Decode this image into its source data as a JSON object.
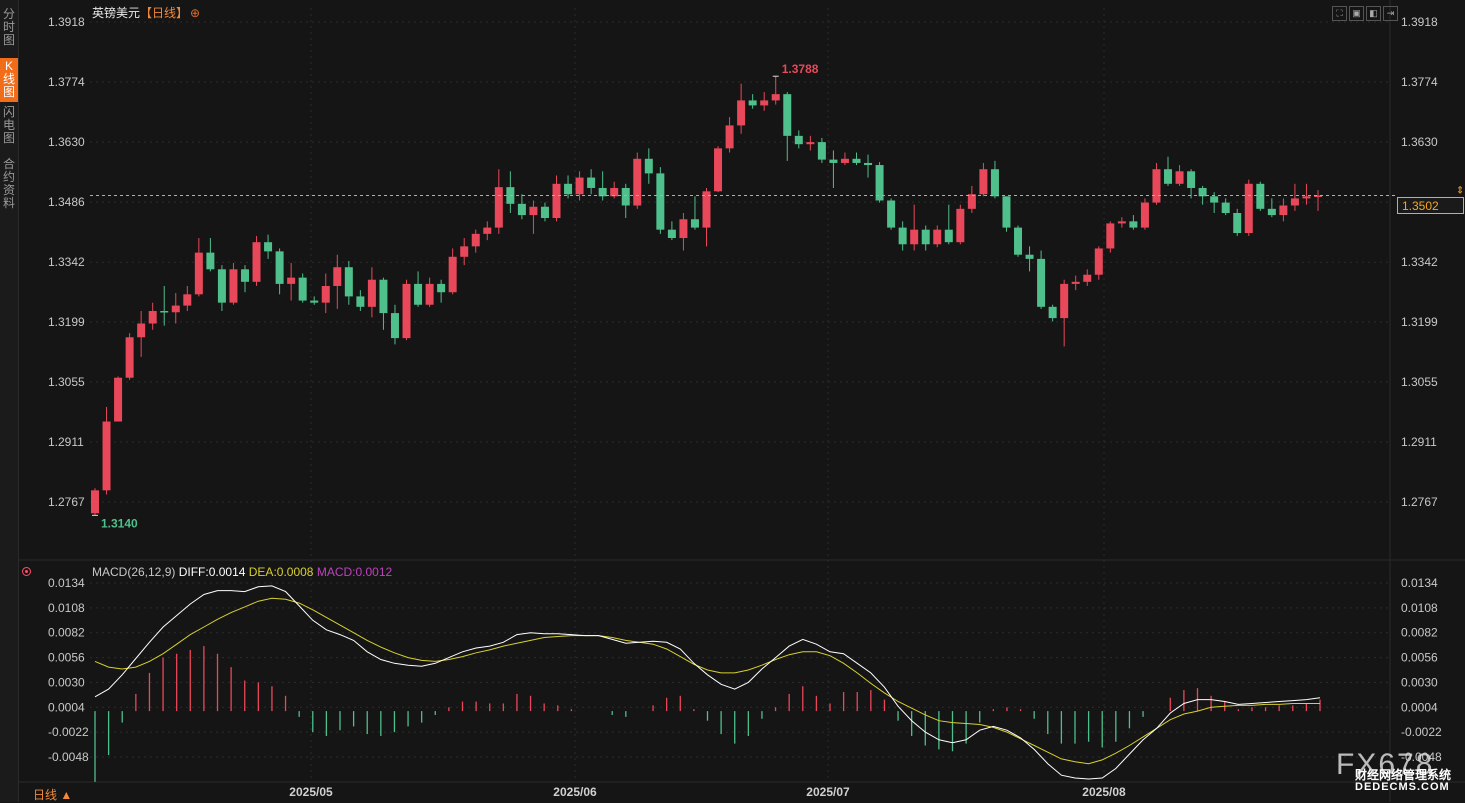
{
  "sidebar": {
    "tabs": [
      {
        "label": "分时图",
        "active": false
      },
      {
        "label": "K线图",
        "active": true
      },
      {
        "label": "闪电图",
        "active": false
      },
      {
        "label": "合约资料",
        "active": false
      }
    ]
  },
  "header": {
    "symbol": "英镑美元",
    "period": "【日线】",
    "add_icon": "⊕"
  },
  "window_controls": [
    "fullscreen-icon",
    "close-icon",
    "restore-icon",
    "expand-icon"
  ],
  "colors": {
    "up": "#e8485a",
    "down": "#4fbf8b",
    "bg": "#151515",
    "grid": "#2c2c2c",
    "diff": "#ffffff",
    "dea": "#d8d030",
    "macd_hist": "#c040c0",
    "last_price": "#f5a623"
  },
  "chart_data": [
    {
      "type": "candlestick",
      "title": "英镑美元",
      "ylim": [
        1.2695,
        1.3918
      ],
      "y_ticks": [
        "1.3918",
        "1.3774",
        "1.3630",
        "1.3486",
        "1.3342",
        "1.3199",
        "1.3055",
        "1.2911",
        "1.2767"
      ],
      "x_ticks": [
        "2025/05",
        "2025/06",
        "2025/07",
        "2025/08"
      ],
      "last_price": "1.3502",
      "annotations": [
        {
          "label": "1.3788",
          "kind": "high"
        },
        {
          "label": "1.3140",
          "kind": "low"
        }
      ],
      "candles": [
        [
          1.274,
          1.2795,
          1.2735,
          1.28
        ],
        [
          1.2795,
          1.296,
          1.2785,
          1.2995
        ],
        [
          1.296,
          1.3065,
          1.296,
          1.3068
        ],
        [
          1.3065,
          1.3162,
          1.306,
          1.3172
        ],
        [
          1.3162,
          1.3195,
          1.3115,
          1.3225
        ],
        [
          1.3195,
          1.3225,
          1.318,
          1.3245
        ],
        [
          1.3225,
          1.3222,
          1.319,
          1.3285
        ],
        [
          1.3222,
          1.3238,
          1.3195,
          1.3268
        ],
        [
          1.3238,
          1.3265,
          1.3225,
          1.3285
        ],
        [
          1.3265,
          1.3365,
          1.326,
          1.34
        ],
        [
          1.3365,
          1.3325,
          1.332,
          1.34
        ],
        [
          1.3325,
          1.3245,
          1.3225,
          1.3335
        ],
        [
          1.3245,
          1.3325,
          1.324,
          1.334
        ],
        [
          1.3325,
          1.3295,
          1.327,
          1.3335
        ],
        [
          1.3295,
          1.339,
          1.3285,
          1.3405
        ],
        [
          1.339,
          1.3368,
          1.335,
          1.3408
        ],
        [
          1.3368,
          1.329,
          1.3265,
          1.3375
        ],
        [
          1.329,
          1.3305,
          1.325,
          1.334
        ],
        [
          1.3305,
          1.325,
          1.3245,
          1.3315
        ],
        [
          1.325,
          1.3245,
          1.324,
          1.326
        ],
        [
          1.3245,
          1.3285,
          1.322,
          1.3315
        ],
        [
          1.3285,
          1.333,
          1.323,
          1.336
        ],
        [
          1.333,
          1.326,
          1.324,
          1.3345
        ],
        [
          1.326,
          1.3235,
          1.3225,
          1.3275
        ],
        [
          1.3235,
          1.33,
          1.321,
          1.333
        ],
        [
          1.33,
          1.322,
          1.318,
          1.3305
        ],
        [
          1.322,
          1.316,
          1.3145,
          1.324
        ],
        [
          1.316,
          1.329,
          1.3155,
          1.33
        ],
        [
          1.329,
          1.324,
          1.3235,
          1.332
        ],
        [
          1.324,
          1.329,
          1.3235,
          1.3305
        ],
        [
          1.329,
          1.327,
          1.3245,
          1.33
        ],
        [
          1.327,
          1.3355,
          1.3265,
          1.3375
        ],
        [
          1.3355,
          1.338,
          1.3335,
          1.34
        ],
        [
          1.338,
          1.341,
          1.3365,
          1.342
        ],
        [
          1.341,
          1.3425,
          1.3395,
          1.344
        ],
        [
          1.3425,
          1.3522,
          1.341,
          1.3565
        ],
        [
          1.3522,
          1.3482,
          1.346,
          1.356
        ],
        [
          1.3482,
          1.3455,
          1.3445,
          1.3505
        ],
        [
          1.3455,
          1.3475,
          1.341,
          1.349
        ],
        [
          1.3475,
          1.3448,
          1.344,
          1.3485
        ],
        [
          1.3448,
          1.353,
          1.344,
          1.355
        ],
        [
          1.353,
          1.3505,
          1.3495,
          1.355
        ],
        [
          1.3505,
          1.3545,
          1.349,
          1.356
        ],
        [
          1.3545,
          1.352,
          1.3505,
          1.3565
        ],
        [
          1.352,
          1.35,
          1.349,
          1.356
        ],
        [
          1.35,
          1.352,
          1.3495,
          1.3535
        ],
        [
          1.352,
          1.3478,
          1.3448,
          1.353
        ],
        [
          1.3478,
          1.359,
          1.347,
          1.3605
        ],
        [
          1.359,
          1.3555,
          1.353,
          1.3615
        ],
        [
          1.3555,
          1.342,
          1.341,
          1.357
        ],
        [
          1.342,
          1.34,
          1.3395,
          1.344
        ],
        [
          1.34,
          1.3445,
          1.337,
          1.346
        ],
        [
          1.3445,
          1.3425,
          1.342,
          1.35
        ],
        [
          1.3425,
          1.3512,
          1.338,
          1.352
        ],
        [
          1.3512,
          1.3615,
          1.351,
          1.362
        ],
        [
          1.3615,
          1.367,
          1.3605,
          1.369
        ],
        [
          1.367,
          1.373,
          1.365,
          1.377
        ],
        [
          1.373,
          1.3718,
          1.371,
          1.3745
        ],
        [
          1.3718,
          1.373,
          1.3705,
          1.375
        ],
        [
          1.373,
          1.3745,
          1.372,
          1.3788
        ],
        [
          1.3745,
          1.3645,
          1.3585,
          1.375
        ],
        [
          1.3645,
          1.3625,
          1.3615,
          1.3658
        ],
        [
          1.3625,
          1.363,
          1.361,
          1.3645
        ],
        [
          1.363,
          1.3588,
          1.358,
          1.364
        ],
        [
          1.3588,
          1.358,
          1.352,
          1.361
        ],
        [
          1.358,
          1.359,
          1.3575,
          1.3605
        ],
        [
          1.359,
          1.358,
          1.3575,
          1.3605
        ],
        [
          1.358,
          1.3575,
          1.3545,
          1.36
        ],
        [
          1.3575,
          1.349,
          1.3485,
          1.3582
        ],
        [
          1.349,
          1.3425,
          1.342,
          1.3495
        ],
        [
          1.3425,
          1.3385,
          1.337,
          1.344
        ],
        [
          1.3385,
          1.342,
          1.337,
          1.348
        ],
        [
          1.342,
          1.3385,
          1.337,
          1.343
        ],
        [
          1.3385,
          1.342,
          1.3378,
          1.343
        ],
        [
          1.342,
          1.339,
          1.3385,
          1.348
        ],
        [
          1.339,
          1.347,
          1.3385,
          1.348
        ],
        [
          1.347,
          1.3505,
          1.346,
          1.3525
        ],
        [
          1.3505,
          1.3565,
          1.35,
          1.358
        ],
        [
          1.3565,
          1.35,
          1.3495,
          1.3585
        ],
        [
          1.35,
          1.3425,
          1.3415,
          1.35
        ],
        [
          1.3425,
          1.336,
          1.3355,
          1.343
        ],
        [
          1.336,
          1.335,
          1.332,
          1.338
        ],
        [
          1.335,
          1.3235,
          1.323,
          1.337
        ],
        [
          1.3235,
          1.3208,
          1.32,
          1.324
        ],
        [
          1.3208,
          1.329,
          1.314,
          1.33
        ],
        [
          1.329,
          1.3295,
          1.3275,
          1.331
        ],
        [
          1.3295,
          1.3312,
          1.3285,
          1.3325
        ],
        [
          1.3312,
          1.3375,
          1.33,
          1.338
        ],
        [
          1.3375,
          1.3435,
          1.3365,
          1.344
        ],
        [
          1.3435,
          1.344,
          1.3425,
          1.345
        ],
        [
          1.344,
          1.3425,
          1.342,
          1.3455
        ],
        [
          1.3425,
          1.3485,
          1.342,
          1.3495
        ],
        [
          1.3485,
          1.3565,
          1.348,
          1.358
        ],
        [
          1.3565,
          1.353,
          1.3525,
          1.3595
        ],
        [
          1.353,
          1.356,
          1.3525,
          1.3575
        ],
        [
          1.356,
          1.352,
          1.3495,
          1.3565
        ],
        [
          1.352,
          1.35,
          1.348,
          1.3525
        ],
        [
          1.35,
          1.3485,
          1.346,
          1.351
        ],
        [
          1.3485,
          1.346,
          1.3455,
          1.3495
        ],
        [
          1.346,
          1.3412,
          1.3405,
          1.347
        ],
        [
          1.3412,
          1.353,
          1.3405,
          1.354
        ],
        [
          1.353,
          1.347,
          1.3465,
          1.3535
        ],
        [
          1.347,
          1.3455,
          1.345,
          1.3495
        ],
        [
          1.3455,
          1.3478,
          1.344,
          1.3495
        ],
        [
          1.3478,
          1.3495,
          1.3465,
          1.353
        ],
        [
          1.3495,
          1.35,
          1.348,
          1.353
        ],
        [
          1.35,
          1.3502,
          1.3465,
          1.3515
        ]
      ]
    },
    {
      "type": "line",
      "title": "MACD(26,12,9)",
      "label_diff": "DIFF:0.0014",
      "label_dea": "DEA:0.0008",
      "label_macd": "MACD:0.0012",
      "ylim": [
        -0.0072,
        0.0134
      ],
      "y_ticks": [
        "0.0134",
        "0.0108",
        "0.0082",
        "0.0056",
        "0.0030",
        "0.0004",
        "-0.0022",
        "-0.0048"
      ],
      "series": [
        {
          "name": "DIFF",
          "values": [
            0.0015,
            0.0023,
            0.0038,
            0.0055,
            0.0072,
            0.0088,
            0.01,
            0.0112,
            0.0122,
            0.0126,
            0.0126,
            0.0125,
            0.013,
            0.0131,
            0.0125,
            0.011,
            0.0095,
            0.0085,
            0.008,
            0.0074,
            0.0062,
            0.0054,
            0.005,
            0.0048,
            0.0047,
            0.005,
            0.0056,
            0.0062,
            0.0066,
            0.0068,
            0.0072,
            0.008,
            0.0082,
            0.0081,
            0.0081,
            0.008,
            0.0079,
            0.0079,
            0.0075,
            0.0071,
            0.0072,
            0.0073,
            0.0072,
            0.0065,
            0.005,
            0.0038,
            0.0028,
            0.0023,
            0.003,
            0.0044,
            0.0056,
            0.0068,
            0.0075,
            0.007,
            0.0062,
            0.006,
            0.005,
            0.004,
            0.0025,
            0.0005,
            -0.001,
            -0.0022,
            -0.003,
            -0.0033,
            -0.003,
            -0.002,
            -0.0016,
            -0.002,
            -0.0028,
            -0.004,
            -0.0055,
            -0.0067,
            -0.007,
            -0.0071,
            -0.007,
            -0.006,
            -0.0045,
            -0.003,
            -0.0018,
            -0.0002,
            0.0008,
            0.0012,
            0.0012,
            0.001,
            0.0007,
            0.0008,
            0.0009,
            0.001,
            0.0011,
            0.0012,
            0.0014
          ]
        },
        {
          "name": "DEA",
          "values": [
            0.0052,
            0.0046,
            0.0044,
            0.0046,
            0.0052,
            0.006,
            0.007,
            0.008,
            0.0088,
            0.0096,
            0.0103,
            0.0109,
            0.0115,
            0.0118,
            0.0117,
            0.0113,
            0.0106,
            0.0098,
            0.009,
            0.0082,
            0.0074,
            0.0067,
            0.0061,
            0.0056,
            0.0053,
            0.0052,
            0.0054,
            0.0057,
            0.0061,
            0.0064,
            0.0068,
            0.0071,
            0.0074,
            0.0077,
            0.0078,
            0.0079,
            0.0079,
            0.0079,
            0.0077,
            0.0074,
            0.0072,
            0.007,
            0.0065,
            0.0057,
            0.0049,
            0.0043,
            0.004,
            0.004,
            0.0043,
            0.0048,
            0.0054,
            0.0059,
            0.0062,
            0.0062,
            0.0058,
            0.005,
            0.004,
            0.0029,
            0.0019,
            0.001,
            0.0003,
            -0.0004,
            -0.001,
            -0.0012,
            -0.0013,
            -0.0014,
            -0.0017,
            -0.0022,
            -0.0029,
            -0.0036,
            -0.0043,
            -0.005,
            -0.0053,
            -0.0055,
            -0.0051,
            -0.0044,
            -0.0036,
            -0.0027,
            -0.0018,
            -0.0009,
            -0.0003,
            0.0,
            0.0004,
            0.0005,
            0.0006,
            0.0006,
            0.0007,
            0.0007,
            0.0008,
            0.0008,
            0.0008
          ]
        }
      ]
    }
  ],
  "footer": {
    "period_label": "日线 ▲"
  },
  "last_price_box": "1.3502",
  "watermark": {
    "main": "FX678",
    "sub1": "财经网络管理系统",
    "sub2": "DEDECMS.COM"
  }
}
